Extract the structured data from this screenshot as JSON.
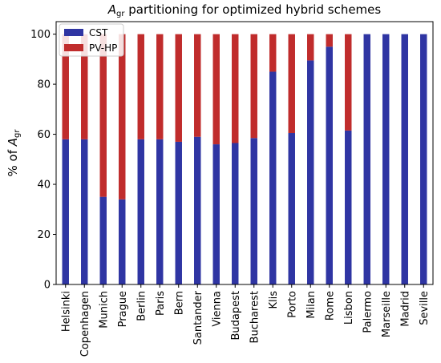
{
  "chart_data": {
    "type": "bar",
    "stacked": true,
    "title": {
      "main": "A",
      "subscript": "gr",
      "rest": " partitioning for optimized hybrid schemes"
    },
    "ylabel": {
      "prefix": "% of ",
      "main": "A",
      "subscript": "gr"
    },
    "xlabel": "",
    "ylim": [
      0,
      105
    ],
    "yticks": [
      0,
      20,
      40,
      60,
      80,
      100
    ],
    "ytick_labels": [
      "0",
      "20",
      "40",
      "60",
      "80",
      "100"
    ],
    "categories": [
      "Helsinki",
      "Copenhagen",
      "Munich",
      "Prague",
      "Berlin",
      "Paris",
      "Bern",
      "Santander",
      "Vienna",
      "Budapest",
      "Bucharest",
      "Klis",
      "Porto",
      "Milan",
      "Rome",
      "Lisbon",
      "Palermo",
      "Marseille",
      "Madrid",
      "Seville"
    ],
    "series": [
      {
        "name": "CST",
        "color": "#2f35a3",
        "values": [
          58,
          58,
          35,
          34,
          58,
          58,
          57,
          59,
          56,
          56.5,
          58.5,
          85,
          60.5,
          89.5,
          95,
          61.5,
          100,
          100,
          100,
          100
        ]
      },
      {
        "name": "PV-HP",
        "color": "#c02c2c",
        "values": [
          42,
          42,
          65,
          66,
          42,
          42,
          43,
          41,
          44,
          43.5,
          41.5,
          15,
          39.5,
          10.5,
          5,
          38.5,
          0,
          0,
          0,
          0
        ]
      }
    ],
    "legend_position": "top-left",
    "grid": false
  }
}
